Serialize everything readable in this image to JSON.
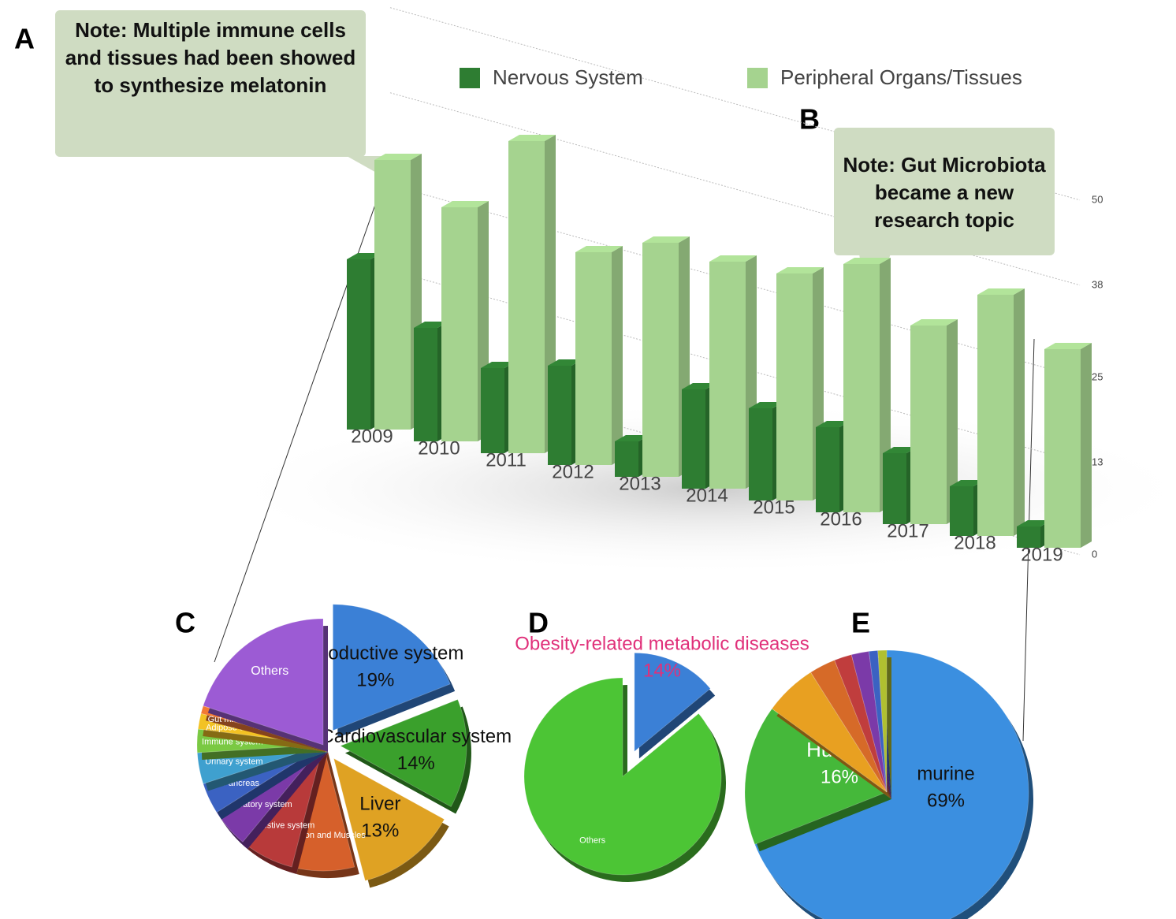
{
  "panel_labels": [
    "A",
    "B",
    "C",
    "D",
    "E"
  ],
  "chart_data": [
    {
      "type": "bar3d",
      "annotations": [
        "Note: Multiple immune cells and tissues had been showed to synthesize melatonin",
        "Note: Gut Microbiota became a new research topic"
      ],
      "categories": [
        "2009",
        "2010",
        "2011",
        "2012",
        "2013",
        "2014",
        "2015",
        "2016",
        "2017",
        "2018",
        "2019"
      ],
      "series": [
        {
          "name": "Nervous System",
          "color": "#2e7d32",
          "values": [
            24,
            16,
            12,
            14,
            5,
            14,
            13,
            12,
            10,
            7,
            3
          ]
        },
        {
          "name": "Peripheral Organs/Tissues",
          "color": "#a5d38f",
          "values": [
            38,
            33,
            44,
            30,
            33,
            32,
            32,
            35,
            28,
            34,
            28
          ]
        }
      ],
      "ylim": [
        0,
        50
      ],
      "yticks": [
        0,
        13,
        25,
        38,
        50
      ],
      "grid": true,
      "legend": "top"
    },
    {
      "type": "pie",
      "categories": [
        "Reproductive system",
        "Cardiovascular system",
        "Liver",
        "Skeleton and Muscles",
        "Digestive system",
        "Respiratory system",
        "Pancreas",
        "Urinary system",
        "Immune system",
        "Adipose tissue",
        "Gut microbiota",
        "Others"
      ],
      "values": [
        19,
        14,
        13,
        8,
        7,
        5,
        4,
        4,
        3,
        2,
        1,
        20
      ],
      "value_labels": [
        "19%",
        "14%",
        "13%",
        null,
        null,
        null,
        null,
        null,
        null,
        null,
        null,
        null
      ],
      "colors": [
        "#3b80d6",
        "#3aa02c",
        "#dfa223",
        "#d6602b",
        "#b83a3a",
        "#7b3aa8",
        "#3b62c2",
        "#3fa0cf",
        "#7ac943",
        "#f2c224",
        "#f27a34",
        "#9c5bd4"
      ]
    },
    {
      "type": "pie",
      "categories": [
        "Obesity-related metabolic diseases",
        "Others"
      ],
      "values": [
        14,
        86
      ],
      "value_labels": [
        "14%",
        null
      ],
      "colors": [
        "#3b80d6",
        "#4cc535"
      ]
    },
    {
      "type": "pie",
      "categories": [
        "murine",
        "Human",
        null,
        null,
        null,
        null,
        null,
        null
      ],
      "values": [
        69,
        16,
        6,
        3,
        2,
        2,
        1,
        1
      ],
      "value_labels": [
        "69%",
        "16%",
        null,
        null,
        null,
        null,
        null,
        null
      ],
      "colors": [
        "#3b8fe0",
        "#45b83a",
        "#e8a021",
        "#d66a28",
        "#c03d3d",
        "#7b3aa8",
        "#3b62c2",
        "#b0c030"
      ]
    }
  ]
}
